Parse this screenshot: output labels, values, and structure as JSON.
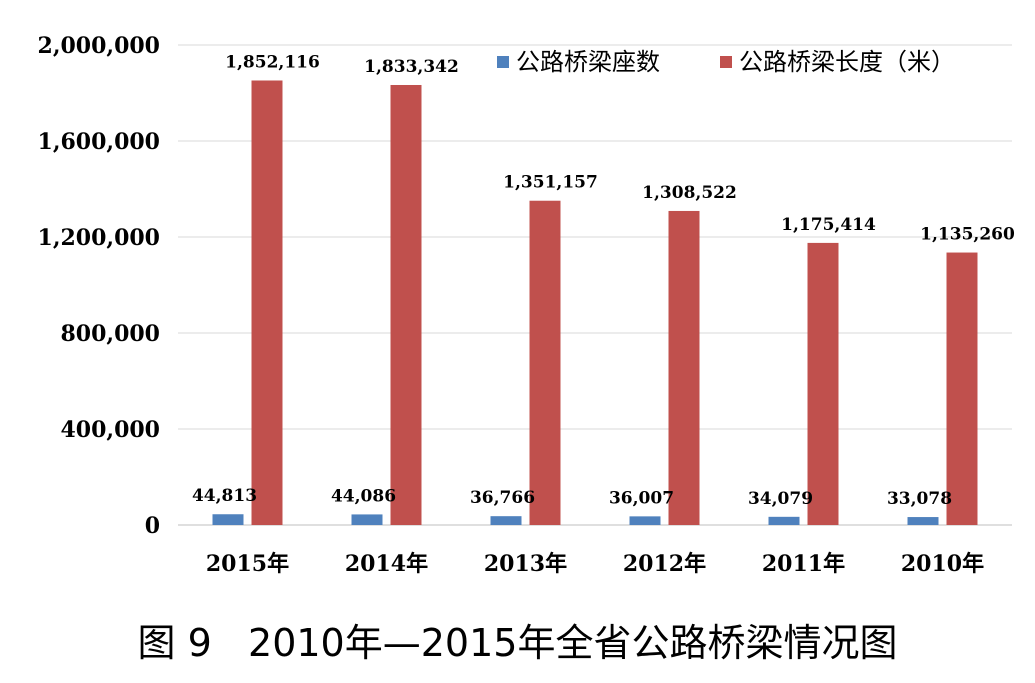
{
  "chart_data": {
    "type": "bar",
    "categories": [
      "2015年",
      "2014年",
      "2013年",
      "2012年",
      "2011年",
      "2010年"
    ],
    "series": [
      {
        "name": "公路桥梁座数",
        "color": "#4f81bd",
        "values": [
          44813,
          44086,
          36766,
          36007,
          34079,
          33078
        ],
        "labels": [
          "44,813",
          "44,086",
          "36,766",
          "36,007",
          "34,079",
          "33,078"
        ]
      },
      {
        "name": "公路桥梁长度（米）",
        "color": "#c0504d",
        "values": [
          1852116,
          1833342,
          1351157,
          1308522,
          1175414,
          1135260
        ],
        "labels": [
          "1,852,116",
          "1,833,342",
          "1,351,157",
          "1,308,522",
          "1,175,414",
          "1,135,260"
        ]
      }
    ],
    "ylim": [
      0,
      2000000
    ],
    "yticks": [
      0,
      400000,
      800000,
      1200000,
      1600000,
      2000000
    ],
    "ytick_labels": [
      "0",
      "400,000",
      "800,000",
      "1,200,000",
      "1,600,000",
      "2,000,000"
    ],
    "grid": true,
    "legend": "top-right",
    "title": ""
  },
  "caption": "图 9   2010年—2015年全省公路桥梁情况图"
}
